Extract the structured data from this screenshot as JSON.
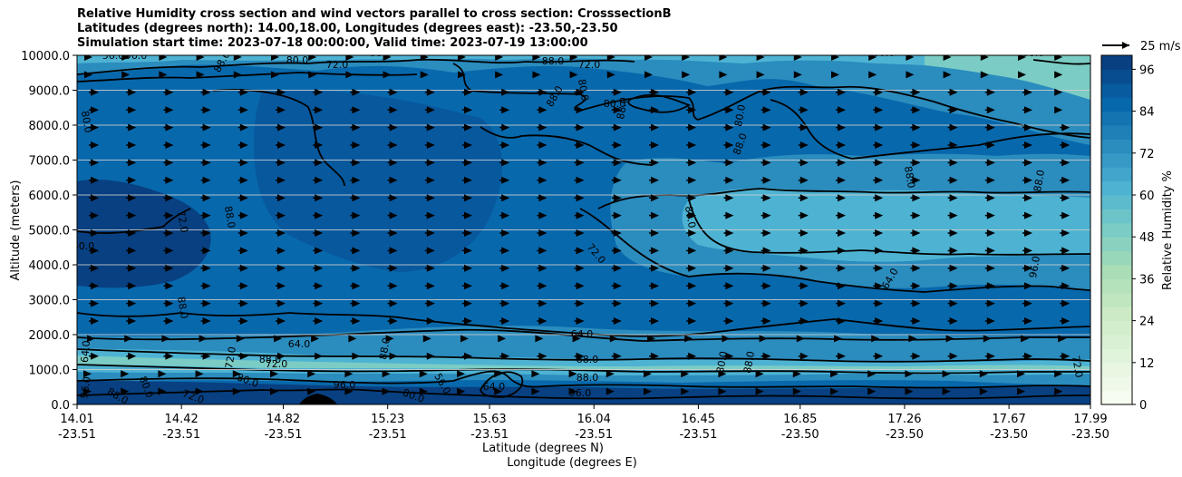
{
  "title_lines": [
    "Relative Humidity cross section and wind vectors parallel to cross section: CrosssectionB",
    "Latitudes (degrees north): 14.00,18.00, Longitudes (degrees east): -23.50,-23.50",
    "Simulation start time: 2023-07-18 00:00:00, Valid time: 2023-07-19 13:00:00"
  ],
  "chart_data": {
    "type": "heatmap",
    "xlabel_line1": "Latitude (degrees N)",
    "xlabel_line2": "Longitude (degrees E)",
    "ylabel": "Altitude (meters)",
    "ylim": [
      0,
      10000
    ],
    "yticks": [
      "0.0",
      "1000.0",
      "2000.0",
      "3000.0",
      "4000.0",
      "5000.0",
      "6000.0",
      "7000.0",
      "8000.0",
      "9000.0",
      "10000.0"
    ],
    "ytick_values": [
      0,
      1000,
      2000,
      3000,
      4000,
      5000,
      6000,
      7000,
      8000,
      9000,
      10000
    ],
    "xticks_lat": [
      "14.01",
      "14.42",
      "14.82",
      "15.23",
      "15.63",
      "16.04",
      "16.45",
      "16.85",
      "17.26",
      "17.67",
      "17.99"
    ],
    "xticks_lon": [
      "-23.51",
      "-23.51",
      "-23.51",
      "-23.51",
      "-23.51",
      "-23.51",
      "-23.51",
      "-23.50",
      "-23.50",
      "-23.50",
      "-23.50"
    ],
    "grid_y": true,
    "colorbar": {
      "label": "Relative Humidity %",
      "ticks": [
        "0",
        "12",
        "24",
        "36",
        "48",
        "60",
        "72",
        "84",
        "96"
      ],
      "tick_values": [
        0,
        12,
        24,
        36,
        48,
        60,
        72,
        84,
        96
      ],
      "range": [
        0,
        100
      ],
      "colormap": "GnBu",
      "colors": [
        "#f7fcf0",
        "#e0f3db",
        "#ccebc5",
        "#a8ddb5",
        "#7bccc4",
        "#4eb3d3",
        "#2b8cbe",
        "#0868ac",
        "#084081"
      ]
    },
    "quiver_key": "25 m/s",
    "contour_labels": [
      "96.0",
      "88.0",
      "80.0",
      "72.0",
      "64.0",
      "56.0",
      "80.0",
      "88.0",
      "72.0",
      "80.0",
      "88.0",
      "96.0",
      "64.0",
      "72.0",
      "80.0",
      "88.0",
      "96.0",
      "88.0",
      "80.0",
      "72.0",
      "88.0",
      "88.0",
      "88.0",
      "80.0",
      "88.0",
      "80.0",
      "88.0",
      "72.0",
      "80.0",
      "88.0",
      "88.0",
      "88.0",
      "64.0",
      "96.0",
      "80.0",
      "72.0",
      "64.0",
      "88.0",
      "88.0"
    ]
  }
}
